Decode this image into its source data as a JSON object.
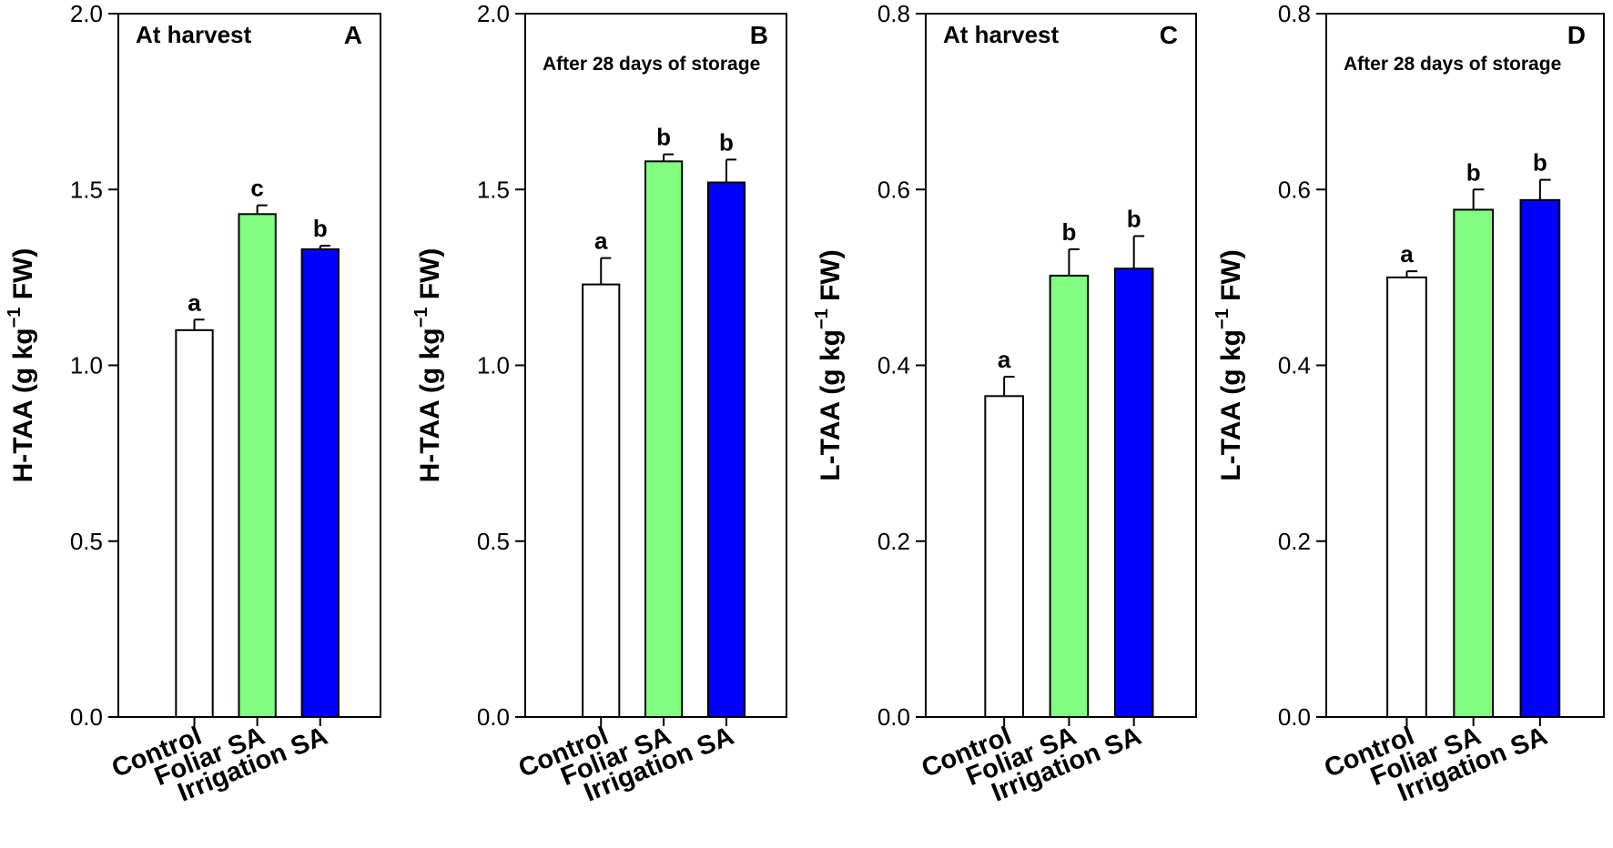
{
  "chart_data": [
    {
      "type": "bar",
      "panel": "A",
      "title": "At harvest",
      "ylabel": "H-TAA (g kg",
      "ylabel_sup": "−1",
      "ylabel_tail": " FW)",
      "ylim": [
        0,
        2.0
      ],
      "yticks": [
        "0.0",
        "0.5",
        "1.0",
        "1.5",
        "2.0"
      ],
      "ytick_values": [
        0,
        0.5,
        1.0,
        1.5,
        2.0
      ],
      "categories": [
        "Control",
        "Foliar SA",
        "Irrigation SA"
      ],
      "values": [
        1.1,
        1.43,
        1.33
      ],
      "errors": [
        0.03,
        0.025,
        0.01
      ],
      "significance": [
        "a",
        "c",
        "b"
      ],
      "colors": [
        "#ffffff",
        "#80ff80",
        "#0000ff"
      ]
    },
    {
      "type": "bar",
      "panel": "B",
      "title": "After 28 days of storage",
      "ylabel": "H-TAA (g kg",
      "ylabel_sup": "−1",
      "ylabel_tail": " FW)",
      "ylim": [
        0,
        2.0
      ],
      "yticks": [
        "0.0",
        "0.5",
        "1.0",
        "1.5",
        "2.0"
      ],
      "ytick_values": [
        0,
        0.5,
        1.0,
        1.5,
        2.0
      ],
      "categories": [
        "Control",
        "Foliar SA",
        "Irrigation SA"
      ],
      "values": [
        1.23,
        1.58,
        1.52
      ],
      "errors": [
        0.075,
        0.02,
        0.065
      ],
      "significance": [
        "a",
        "b",
        "b"
      ],
      "colors": [
        "#ffffff",
        "#80ff80",
        "#0000ff"
      ]
    },
    {
      "type": "bar",
      "panel": "C",
      "title": "At harvest",
      "ylabel": "L-TAA (g kg",
      "ylabel_sup": "−1",
      "ylabel_tail": " FW)",
      "ylim": [
        0,
        0.8
      ],
      "yticks": [
        "0.0",
        "0.2",
        "0.4",
        "0.6",
        "0.8"
      ],
      "ytick_values": [
        0,
        0.2,
        0.4,
        0.6,
        0.8
      ],
      "categories": [
        "Control",
        "Foliar SA",
        "Irrigation SA"
      ],
      "values": [
        0.365,
        0.502,
        0.51
      ],
      "errors": [
        0.022,
        0.03,
        0.037
      ],
      "significance": [
        "a",
        "b",
        "b"
      ],
      "colors": [
        "#ffffff",
        "#80ff80",
        "#0000ff"
      ]
    },
    {
      "type": "bar",
      "panel": "D",
      "title": "After 28 days of storage",
      "ylabel": "L-TAA (g kg",
      "ylabel_sup": "−1",
      "ylabel_tail": " FW)",
      "ylim": [
        0,
        0.8
      ],
      "yticks": [
        "0.0",
        "0.2",
        "0.4",
        "0.6",
        "0.8"
      ],
      "ytick_values": [
        0,
        0.2,
        0.4,
        0.6,
        0.8
      ],
      "categories": [
        "Control",
        "Foliar SA",
        "Irrigation SA"
      ],
      "values": [
        0.5,
        0.577,
        0.588
      ],
      "errors": [
        0.007,
        0.023,
        0.023
      ],
      "significance": [
        "a",
        "b",
        "b"
      ],
      "colors": [
        "#ffffff",
        "#80ff80",
        "#0000ff"
      ]
    }
  ]
}
